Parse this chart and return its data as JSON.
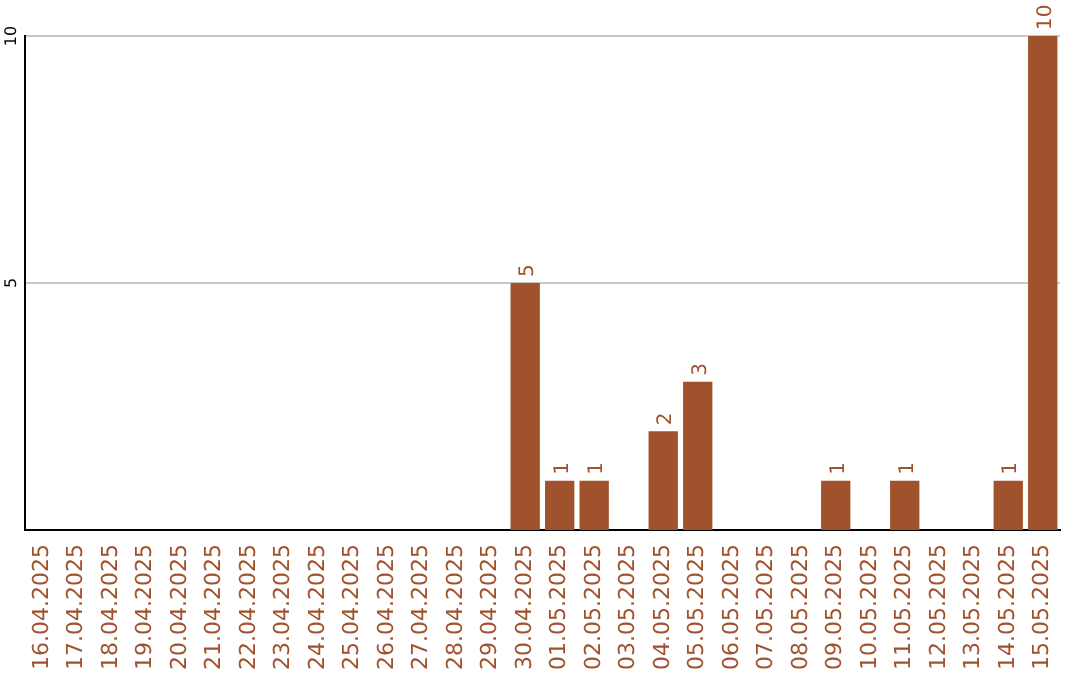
{
  "chart_data": {
    "type": "bar",
    "categories": [
      "16.04.2025",
      "17.04.2025",
      "18.04.2025",
      "19.04.2025",
      "20.04.2025",
      "21.04.2025",
      "22.04.2025",
      "23.04.2025",
      "24.04.2025",
      "25.04.2025",
      "26.04.2025",
      "27.04.2025",
      "28.04.2025",
      "29.04.2025",
      "30.04.2025",
      "01.05.2025",
      "02.05.2025",
      "03.05.2025",
      "04.05.2025",
      "05.05.2025",
      "06.05.2025",
      "07.05.2025",
      "08.05.2025",
      "09.05.2025",
      "10.05.2025",
      "11.05.2025",
      "12.05.2025",
      "13.05.2025",
      "14.05.2025",
      "15.05.2025"
    ],
    "values": [
      0,
      0,
      0,
      0,
      0,
      0,
      0,
      0,
      0,
      0,
      0,
      0,
      0,
      0,
      5,
      1,
      1,
      0,
      2,
      3,
      0,
      0,
      0,
      1,
      0,
      1,
      0,
      0,
      1,
      10
    ],
    "value_labels": [
      null,
      null,
      null,
      null,
      null,
      null,
      null,
      null,
      null,
      null,
      null,
      null,
      null,
      null,
      "5",
      "1",
      "1",
      null,
      "2",
      "3",
      null,
      null,
      null,
      "1",
      null,
      "1",
      null,
      null,
      "1",
      "10"
    ],
    "color": "#a0522d",
    "ylim": [
      0,
      10
    ],
    "yticks": [
      5,
      10
    ],
    "grid": "y",
    "legend": false
  }
}
